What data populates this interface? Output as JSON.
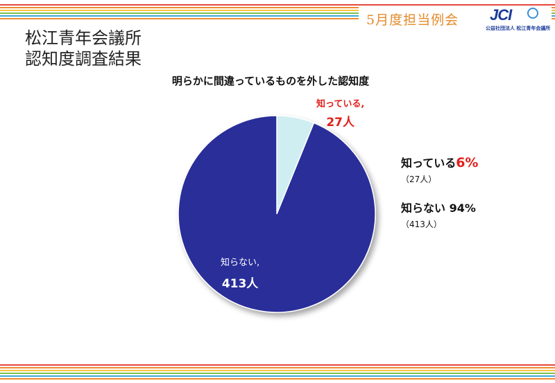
{
  "header": {
    "title": "5月度担当例会",
    "logo_text": "JCI",
    "logo_subtext": "公益社団法人 松江青年会議所"
  },
  "page_title": {
    "line1": "松江青年会議所",
    "line2": "認知度調査結果"
  },
  "colors": {
    "known": "#cfeef1",
    "unknown": "#2b2f99",
    "accent_red": "#e0201c",
    "header_orange": "#e58a2a"
  },
  "stripe_colors": [
    "#e5473b",
    "#f08a2f",
    "#f6c33a",
    "#7cc24a",
    "#3aa7d9",
    "#f08a2f"
  ],
  "chart_data": {
    "type": "pie",
    "title": "明らかに間違っているものを外した認知度",
    "slices": [
      {
        "name": "知っている",
        "value": 27,
        "label": "知っている,",
        "value_label": "27人"
      },
      {
        "name": "知らない",
        "value": 413,
        "label": "知らない,",
        "value_label": "413人"
      }
    ],
    "legend": [
      {
        "label": "知っている",
        "percent": "6%",
        "count": "（27人）"
      },
      {
        "label": "知らない",
        "percent": " 94%",
        "count": "（413人）"
      }
    ]
  }
}
